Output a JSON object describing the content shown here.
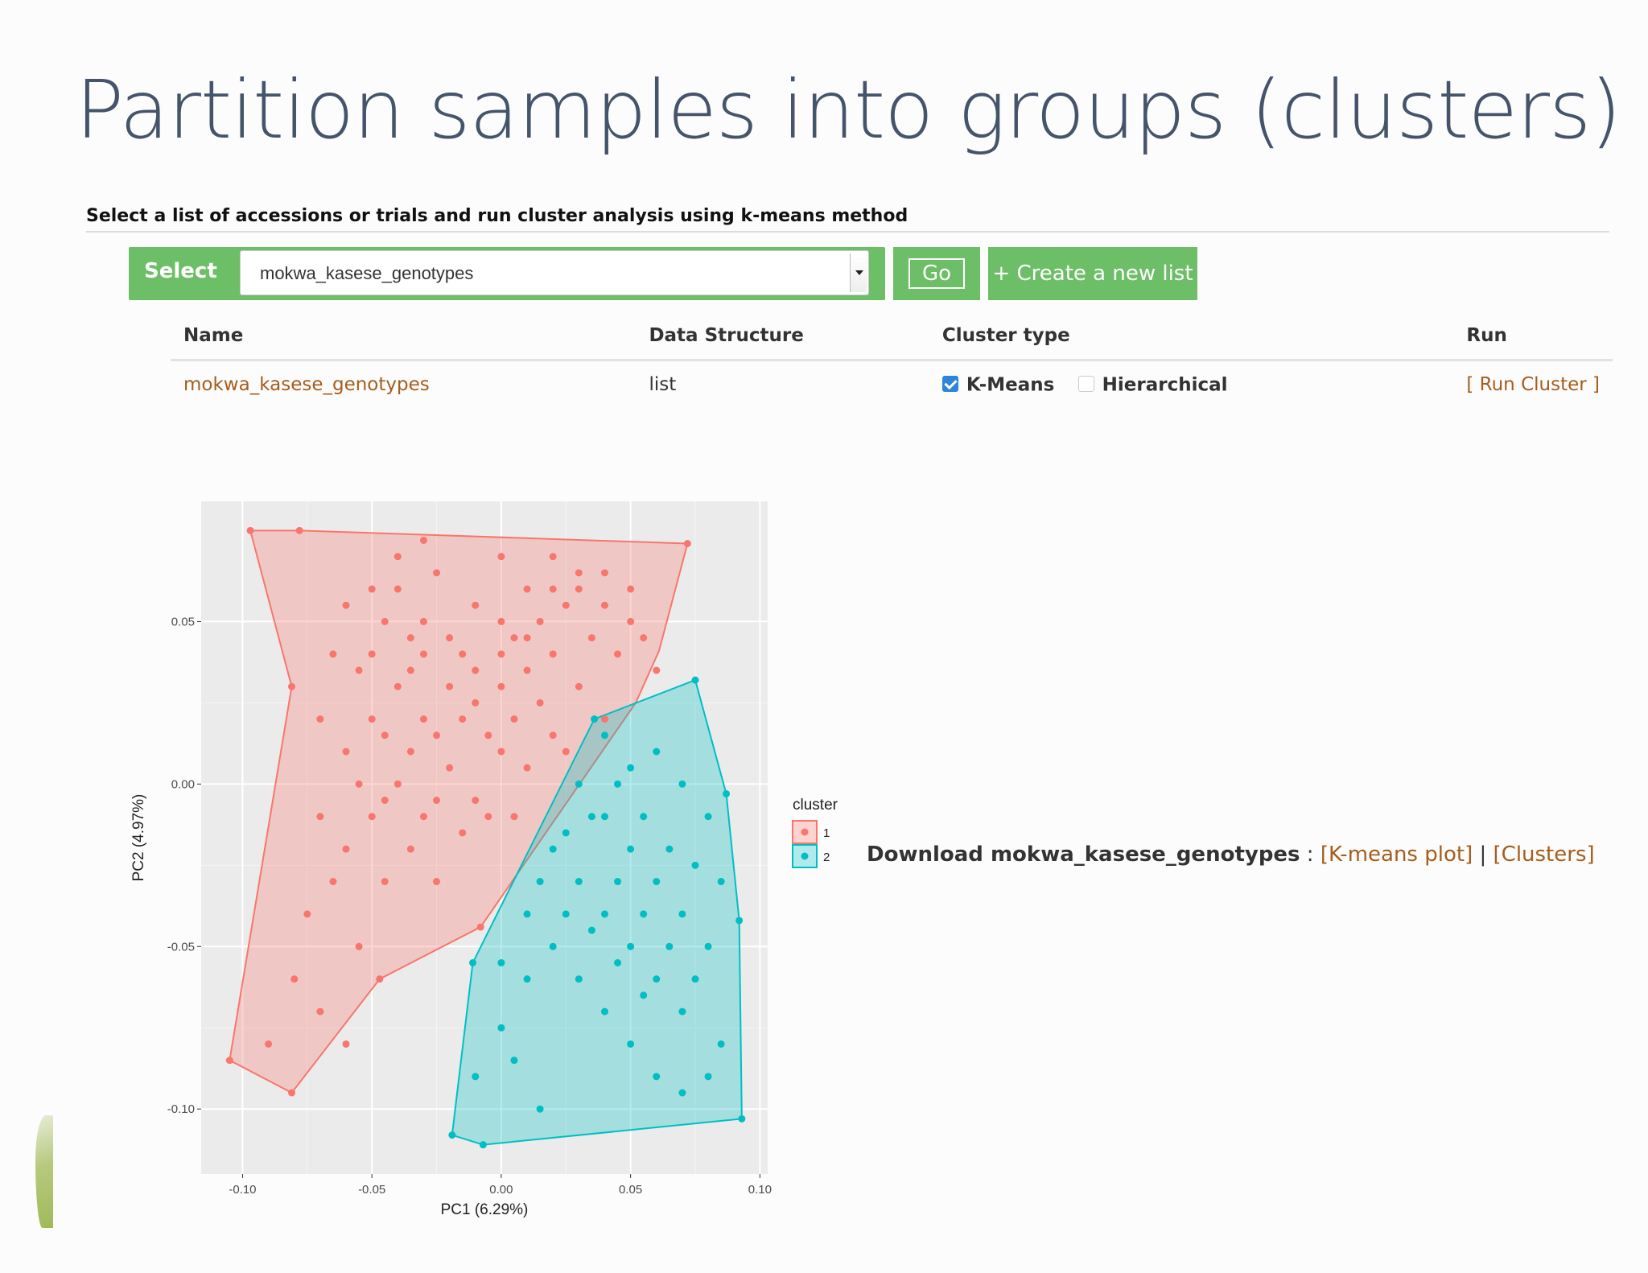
{
  "slide": {
    "title": "Partition samples into groups (clusters)",
    "subheading": "Select a list of accessions or trials and run cluster analysis using k-means method"
  },
  "toolbar": {
    "select_label": "Select",
    "selected_list": "mokwa_kasese_genotypes",
    "go_label": "Go",
    "create_label": "+ Create a new list"
  },
  "table": {
    "headers": [
      "Name",
      "Data Structure",
      "Cluster type",
      "Run"
    ],
    "row": {
      "name": "mokwa_kasese_genotypes",
      "structure": "list",
      "kmeans_label": "K-Means",
      "kmeans_checked": true,
      "hierarchical_label": "Hierarchical",
      "hierarchical_checked": false,
      "run_label": "[ Run Cluster ]"
    }
  },
  "download": {
    "prefix": "Download mokwa_kasese_genotypes",
    "separator_colon": " : ",
    "kmeans_link": "[K-means plot]",
    "pipe": " | ",
    "clusters_link": "[Clusters]"
  },
  "colors": {
    "button_green": "#6dbf67",
    "link_brown": "#a55d1c",
    "cluster1": "#f8766d",
    "cluster2": "#00bfc4"
  },
  "chart_data": {
    "type": "scatter",
    "xlabel": "PC1 (6.29%)",
    "ylabel": "PC2 (4.97%)",
    "xlim": [
      -0.116,
      0.103
    ],
    "ylim": [
      -0.12,
      0.087
    ],
    "xticks": [
      -0.1,
      -0.05,
      0.0,
      0.05,
      0.1
    ],
    "xtick_labels": [
      "-0.10",
      "-0.05",
      "0.00",
      "0.05",
      "0.10"
    ],
    "yticks": [
      -0.1,
      -0.05,
      0.0,
      0.05
    ],
    "ytick_labels": [
      "-0.10",
      "-0.05",
      "0.00",
      "0.05"
    ],
    "legend": {
      "title": "cluster",
      "position": "right"
    },
    "series": [
      {
        "name": "1",
        "color": "#f8766d",
        "hull": [
          [
            -0.097,
            0.078
          ],
          [
            -0.078,
            0.078
          ],
          [
            0.072,
            0.074
          ],
          [
            0.061,
            0.041
          ],
          [
            0.052,
            0.025
          ],
          [
            -0.008,
            -0.044
          ],
          [
            -0.047,
            -0.06
          ],
          [
            -0.081,
            -0.095
          ],
          [
            -0.105,
            -0.085
          ],
          [
            -0.081,
            0.03
          ]
        ],
        "points": [
          [
            -0.097,
            0.078
          ],
          [
            -0.078,
            0.078
          ],
          [
            0.072,
            0.074
          ],
          [
            -0.081,
            0.03
          ],
          [
            -0.105,
            -0.085
          ],
          [
            -0.081,
            -0.095
          ],
          [
            -0.008,
            -0.044
          ],
          [
            -0.047,
            -0.06
          ],
          [
            -0.06,
            0.055
          ],
          [
            -0.05,
            0.04
          ],
          [
            -0.04,
            0.06
          ],
          [
            -0.03,
            0.05
          ],
          [
            -0.02,
            0.045
          ],
          [
            -0.01,
            0.055
          ],
          [
            0.0,
            0.05
          ],
          [
            0.01,
            0.06
          ],
          [
            0.02,
            0.07
          ],
          [
            0.03,
            0.065
          ],
          [
            0.04,
            0.055
          ],
          [
            0.05,
            0.06
          ],
          [
            0.055,
            0.045
          ],
          [
            0.06,
            0.035
          ],
          [
            -0.07,
            0.02
          ],
          [
            -0.06,
            0.01
          ],
          [
            -0.05,
            0.02
          ],
          [
            -0.04,
            0.03
          ],
          [
            -0.03,
            0.02
          ],
          [
            -0.02,
            0.03
          ],
          [
            -0.01,
            0.025
          ],
          [
            0.0,
            0.03
          ],
          [
            0.01,
            0.035
          ],
          [
            0.02,
            0.04
          ],
          [
            0.03,
            0.03
          ],
          [
            0.04,
            0.02
          ],
          [
            -0.07,
            -0.01
          ],
          [
            -0.06,
            -0.02
          ],
          [
            -0.05,
            -0.01
          ],
          [
            -0.04,
            0.0
          ],
          [
            -0.03,
            -0.01
          ],
          [
            -0.02,
            0.005
          ],
          [
            -0.01,
            -0.005
          ],
          [
            0.0,
            0.01
          ],
          [
            0.01,
            0.005
          ],
          [
            0.02,
            0.015
          ],
          [
            -0.075,
            -0.04
          ],
          [
            -0.065,
            -0.03
          ],
          [
            -0.055,
            -0.05
          ],
          [
            -0.045,
            -0.03
          ],
          [
            -0.035,
            -0.02
          ],
          [
            -0.025,
            -0.03
          ],
          [
            -0.08,
            -0.06
          ],
          [
            -0.07,
            -0.07
          ],
          [
            -0.09,
            -0.08
          ],
          [
            -0.06,
            -0.08
          ],
          [
            -0.035,
            0.045
          ],
          [
            -0.025,
            0.065
          ],
          [
            -0.015,
            0.04
          ],
          [
            0.005,
            0.045
          ],
          [
            0.015,
            0.05
          ],
          [
            0.025,
            0.055
          ],
          [
            0.035,
            0.045
          ],
          [
            0.045,
            0.04
          ],
          [
            -0.045,
            0.05
          ],
          [
            -0.055,
            0.035
          ],
          [
            -0.065,
            0.04
          ],
          [
            -0.045,
            0.015
          ],
          [
            -0.035,
            0.01
          ],
          [
            -0.025,
            0.015
          ],
          [
            -0.015,
            0.02
          ],
          [
            -0.005,
            0.015
          ],
          [
            0.005,
            0.02
          ],
          [
            0.015,
            0.025
          ],
          [
            0.025,
            0.01
          ],
          [
            -0.055,
            0.0
          ],
          [
            -0.045,
            -0.005
          ],
          [
            -0.025,
            -0.005
          ],
          [
            -0.015,
            -0.015
          ],
          [
            -0.005,
            -0.01
          ],
          [
            0.005,
            -0.01
          ],
          [
            -0.035,
            0.035
          ],
          [
            -0.03,
            0.04
          ],
          [
            -0.01,
            0.035
          ],
          [
            0.0,
            0.04
          ],
          [
            0.01,
            0.045
          ],
          [
            0.03,
            0.06
          ],
          [
            0.04,
            0.065
          ],
          [
            0.05,
            0.05
          ],
          [
            -0.04,
            0.07
          ],
          [
            -0.03,
            0.075
          ],
          [
            0.0,
            0.07
          ],
          [
            0.02,
            0.06
          ],
          [
            -0.05,
            0.06
          ]
        ]
      },
      {
        "name": "2",
        "color": "#00bfc4",
        "hull": [
          [
            0.036,
            0.02
          ],
          [
            0.075,
            0.032
          ],
          [
            0.087,
            -0.003
          ],
          [
            0.092,
            -0.042
          ],
          [
            0.093,
            -0.103
          ],
          [
            -0.007,
            -0.111
          ],
          [
            -0.019,
            -0.108
          ],
          [
            -0.011,
            -0.055
          ]
        ],
        "points": [
          [
            0.036,
            0.02
          ],
          [
            0.075,
            0.032
          ],
          [
            0.087,
            -0.003
          ],
          [
            0.092,
            -0.042
          ],
          [
            0.093,
            -0.103
          ],
          [
            -0.007,
            -0.111
          ],
          [
            -0.019,
            -0.108
          ],
          [
            -0.011,
            -0.055
          ],
          [
            0.04,
            0.015
          ],
          [
            0.05,
            0.005
          ],
          [
            0.06,
            0.01
          ],
          [
            0.07,
            0.0
          ],
          [
            0.08,
            -0.01
          ],
          [
            0.085,
            -0.03
          ],
          [
            0.03,
            0.0
          ],
          [
            0.04,
            -0.01
          ],
          [
            0.05,
            -0.02
          ],
          [
            0.06,
            -0.03
          ],
          [
            0.07,
            -0.04
          ],
          [
            0.08,
            -0.05
          ],
          [
            0.02,
            -0.02
          ],
          [
            0.03,
            -0.03
          ],
          [
            0.04,
            -0.04
          ],
          [
            0.05,
            -0.05
          ],
          [
            0.06,
            -0.06
          ],
          [
            0.07,
            -0.07
          ],
          [
            0.01,
            -0.04
          ],
          [
            0.02,
            -0.05
          ],
          [
            0.03,
            -0.06
          ],
          [
            0.04,
            -0.07
          ],
          [
            0.05,
            -0.08
          ],
          [
            0.0,
            -0.055
          ],
          [
            0.01,
            -0.06
          ],
          [
            0.0,
            -0.075
          ],
          [
            -0.01,
            -0.09
          ],
          [
            0.005,
            -0.085
          ],
          [
            0.015,
            -0.1
          ],
          [
            0.045,
            -0.03
          ],
          [
            0.055,
            -0.04
          ],
          [
            0.065,
            -0.05
          ],
          [
            0.075,
            -0.06
          ],
          [
            0.085,
            -0.08
          ],
          [
            0.08,
            -0.09
          ],
          [
            0.07,
            -0.095
          ],
          [
            0.06,
            -0.09
          ],
          [
            0.035,
            -0.045
          ],
          [
            0.045,
            -0.055
          ],
          [
            0.055,
            -0.065
          ],
          [
            0.025,
            -0.04
          ],
          [
            0.015,
            -0.03
          ],
          [
            0.065,
            -0.02
          ],
          [
            0.075,
            -0.025
          ],
          [
            0.055,
            -0.01
          ],
          [
            0.045,
            0.0
          ],
          [
            0.035,
            -0.01
          ],
          [
            0.025,
            -0.015
          ]
        ]
      }
    ]
  }
}
